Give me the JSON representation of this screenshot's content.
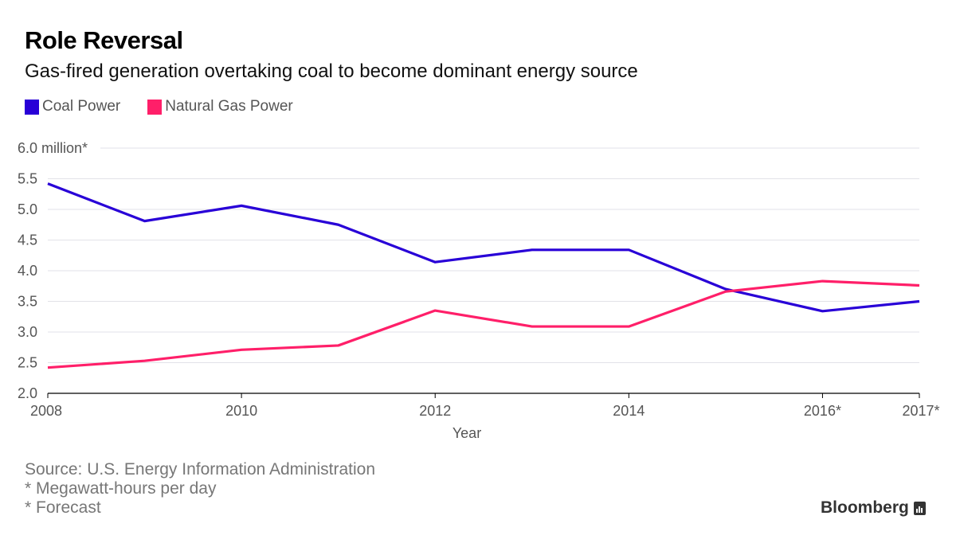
{
  "header": {
    "title": "Role Reversal",
    "subtitle": "Gas-fired generation overtaking coal to become dominant energy source"
  },
  "legend": [
    {
      "label": "Coal Power",
      "color": "#2800d7"
    },
    {
      "label": "Natural Gas Power",
      "color": "#ff1f69"
    }
  ],
  "footer": {
    "source": "Source: U.S. Energy Information Administration",
    "note1": "* Megawatt-hours per day",
    "note2": "* Forecast",
    "brand": "Bloomberg"
  },
  "chart_data": {
    "type": "line",
    "title": "Role Reversal",
    "subtitle": "Gas-fired generation overtaking coal to become dominant energy source",
    "xlabel": "Year",
    "ylabel": "",
    "x": [
      2008,
      2009,
      2010,
      2011,
      2012,
      2013,
      2014,
      2015,
      2016,
      2017
    ],
    "x_ticks": [
      {
        "value": 2008,
        "label": "2008"
      },
      {
        "value": 2010,
        "label": "2010"
      },
      {
        "value": 2012,
        "label": "2012"
      },
      {
        "value": 2014,
        "label": "2014"
      },
      {
        "value": 2016,
        "label": "2016*"
      },
      {
        "value": 2017,
        "label": "2017*"
      }
    ],
    "y_ticks": [
      {
        "value": 2.0,
        "label": "2.0"
      },
      {
        "value": 2.5,
        "label": "2.5"
      },
      {
        "value": 3.0,
        "label": "3.0"
      },
      {
        "value": 3.5,
        "label": "3.5"
      },
      {
        "value": 4.0,
        "label": "4.0"
      },
      {
        "value": 4.5,
        "label": "4.5"
      },
      {
        "value": 5.0,
        "label": "5.0"
      },
      {
        "value": 5.5,
        "label": "5.5"
      },
      {
        "value": 6.0,
        "label": "6.0 million*"
      }
    ],
    "ylim": [
      2.0,
      6.0
    ],
    "xlim": [
      2008,
      2017
    ],
    "grid": true,
    "legend_position": "top-left",
    "series": [
      {
        "name": "Coal Power",
        "color": "#2800d7",
        "values": [
          5.42,
          4.81,
          5.06,
          4.75,
          4.14,
          4.34,
          4.34,
          3.7,
          3.34,
          3.5
        ]
      },
      {
        "name": "Natural Gas Power",
        "color": "#ff1f69",
        "values": [
          2.42,
          2.53,
          2.71,
          2.78,
          3.35,
          3.09,
          3.09,
          3.66,
          3.83,
          3.76
        ]
      }
    ]
  }
}
